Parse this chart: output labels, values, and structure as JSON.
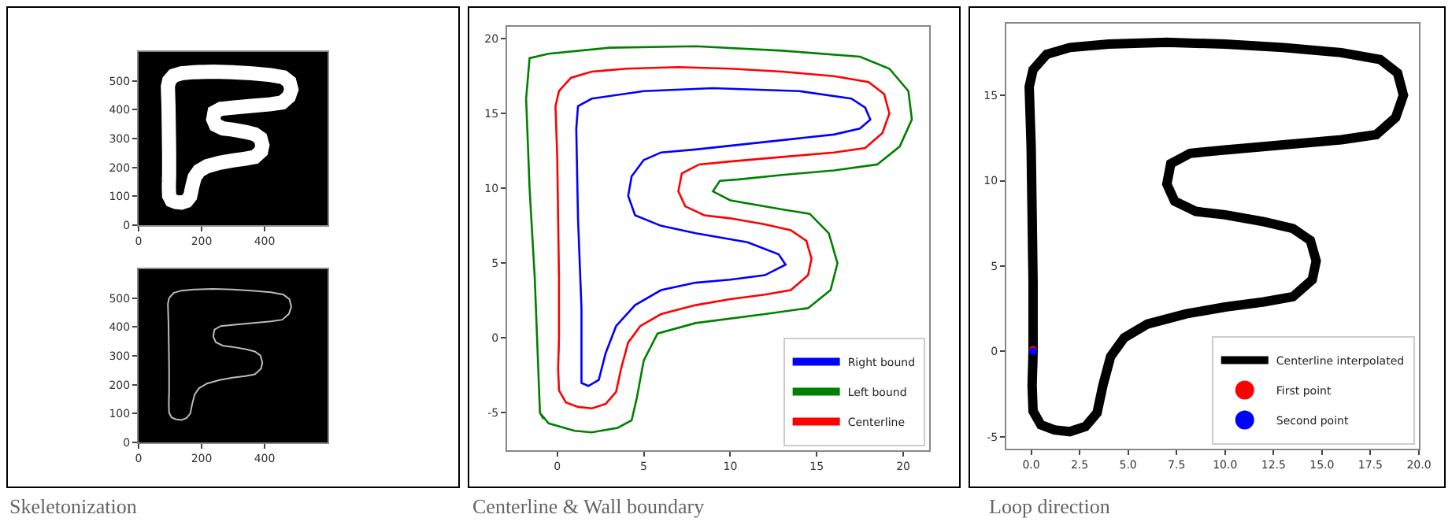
{
  "chart_data": [
    {
      "type": "line",
      "xlim": [
        0,
        600
      ],
      "ylim": [
        0,
        600
      ],
      "xticks": [
        0,
        200,
        400
      ],
      "yticks": [
        0,
        100,
        200,
        300,
        400,
        500
      ],
      "grid": false,
      "series": [
        {
          "color": "#ffffff",
          "x": [
            97,
            96,
            97,
            105,
            119,
            136,
            152,
            164,
            170,
            178,
            192,
            217,
            257,
            298,
            339,
            369,
            389,
            393,
            387,
            369,
            339,
            298,
            268,
            245,
            237,
            241,
            261,
            298,
            359,
            420,
            456,
            477,
            485,
            479,
            460,
            420,
            359,
            298,
            237,
            176,
            136,
            111,
            97,
            93,
            95,
            96,
            97,
            97,
            96
          ],
          "values": [
            172,
            132,
            102,
            86,
            80,
            78,
            84,
            100,
            132,
            166,
            188,
            204,
            216,
            224,
            230,
            236,
            256,
            277,
            301,
            315,
            323,
            331,
            335,
            347,
            367,
            391,
            403,
            407,
            413,
            419,
            425,
            445,
            470,
            496,
            512,
            520,
            526,
            530,
            532,
            530,
            526,
            518,
            500,
            480,
            411,
            331,
            252,
            172,
            152
          ]
        }
      ]
    },
    {
      "type": "line",
      "xlim": [
        0,
        600
      ],
      "ylim": [
        0,
        600
      ],
      "xticks": [
        0,
        200,
        400
      ],
      "yticks": [
        0,
        100,
        200,
        300,
        400,
        500
      ],
      "grid": false,
      "annotations": [
        "Skeletonization"
      ],
      "series": [
        {
          "color": "#bbbbbb",
          "x": [
            97,
            96,
            97,
            105,
            119,
            136,
            152,
            164,
            170,
            178,
            192,
            217,
            257,
            298,
            339,
            369,
            389,
            393,
            387,
            369,
            339,
            298,
            268,
            245,
            237,
            241,
            261,
            298,
            359,
            420,
            456,
            477,
            485,
            479,
            460,
            420,
            359,
            298,
            237,
            176,
            136,
            111,
            97,
            93,
            95,
            96,
            97,
            97,
            96
          ],
          "values": [
            172,
            132,
            102,
            86,
            80,
            78,
            84,
            100,
            132,
            166,
            188,
            204,
            216,
            224,
            230,
            236,
            256,
            277,
            301,
            315,
            323,
            331,
            335,
            347,
            367,
            391,
            403,
            407,
            413,
            419,
            425,
            445,
            470,
            496,
            512,
            520,
            526,
            530,
            532,
            530,
            526,
            518,
            500,
            480,
            411,
            331,
            252,
            172,
            152
          ]
        }
      ]
    },
    {
      "type": "line",
      "xlim": [
        -2.9,
        21.5
      ],
      "ylim": [
        -7.5,
        20.8
      ],
      "xticks": [
        0,
        5,
        10,
        15,
        20
      ],
      "yticks": [
        -5,
        0,
        5,
        10,
        15,
        20
      ],
      "grid": false,
      "legend": "bottom right",
      "annotations": [
        "Centerline & Wall boundary"
      ],
      "series": [
        {
          "name": "Right bound",
          "color": "#0000ff",
          "x": [
            1.4,
            1.8,
            2.4,
            2.8,
            3.4,
            4.5,
            6,
            8,
            10,
            12,
            13.2,
            12.8,
            11,
            8,
            6,
            4.5,
            4.1,
            4.3,
            5,
            6,
            8,
            12,
            16,
            17.5,
            18.1,
            17.8,
            17,
            14,
            9,
            5,
            2,
            1.2,
            1.1,
            1.2,
            1.4,
            1.4,
            1.6
          ],
          "values": [
            -3,
            -3.2,
            -2.8,
            -1,
            0.8,
            2.2,
            3.2,
            3.7,
            3.9,
            4.2,
            4.9,
            5.6,
            6.4,
            7,
            7.5,
            8.2,
            9.5,
            10.8,
            11.9,
            12.4,
            12.6,
            13.1,
            13.6,
            14,
            14.6,
            15.4,
            16,
            16.5,
            16.7,
            16.5,
            16,
            15.5,
            14,
            8,
            2,
            -3,
            -3.1
          ]
        },
        {
          "name": "Left bound",
          "color": "#008000",
          "x": [
            -1,
            -0.5,
            1,
            2,
            3.5,
            4.3,
            4.6,
            5,
            5.8,
            8,
            12,
            14.5,
            15.8,
            16.2,
            15.7,
            14.6,
            13,
            10,
            9,
            9.4,
            10.5,
            13,
            16,
            18.5,
            19.8,
            20.5,
            20.3,
            19.2,
            17.5,
            13,
            8,
            3,
            -0.5,
            -1.6,
            -1.8,
            -1.6,
            -1.3,
            -1,
            -0.8
          ],
          "values": [
            -5,
            -5.7,
            -6.2,
            -6.3,
            -6,
            -5.5,
            -4,
            -1.5,
            0.3,
            1,
            1.6,
            2,
            3.2,
            5,
            7,
            8.3,
            8.6,
            9.2,
            9.8,
            10.5,
            10.6,
            10.9,
            11.2,
            11.6,
            12.8,
            14.6,
            16.5,
            18,
            18.8,
            19.2,
            19.5,
            19.4,
            19,
            18.7,
            16,
            10,
            4,
            -5,
            -5.4
          ]
        },
        {
          "name": "Centerline",
          "color": "#ff0000",
          "x": [
            0.1,
            0.05,
            0.1,
            0.5,
            1.2,
            2,
            2.8,
            3.4,
            3.7,
            4.1,
            4.8,
            6,
            8,
            10,
            12,
            13.5,
            14.5,
            14.7,
            14.4,
            13.5,
            12,
            10,
            8.5,
            7.4,
            7,
            7.2,
            8.2,
            10,
            13,
            16,
            17.8,
            18.8,
            19.2,
            18.9,
            18,
            16,
            13,
            10,
            7,
            4,
            2,
            0.8,
            0.1,
            -0.1,
            0,
            0.05,
            0.1,
            0.1,
            0.08
          ],
          "values": [
            0,
            -2,
            -3.5,
            -4.3,
            -4.6,
            -4.7,
            -4.4,
            -3.6,
            -2,
            -0.3,
            0.8,
            1.6,
            2.2,
            2.6,
            2.9,
            3.2,
            4.2,
            5.3,
            6.5,
            7.2,
            7.6,
            8,
            8.2,
            8.8,
            9.8,
            11,
            11.6,
            11.8,
            12.1,
            12.4,
            12.7,
            13.7,
            15,
            16.3,
            17.1,
            17.5,
            17.8,
            18,
            18.1,
            18,
            17.8,
            17.4,
            16.5,
            15.5,
            12,
            8,
            4,
            0,
            -1
          ]
        }
      ]
    },
    {
      "type": "scatter",
      "xlim": [
        -1.28,
        20
      ],
      "ylim": [
        -5.7,
        19.2
      ],
      "xticks": [
        {
          "value": 0,
          "label": "0.0"
        },
        2.5,
        {
          "value": 5,
          "label": "5.0"
        },
        7.5,
        {
          "value": 10,
          "label": "10.0"
        },
        12.5,
        {
          "value": 15,
          "label": "15.0"
        },
        17.5,
        {
          "value": 20,
          "label": "20.0"
        }
      ],
      "yticks": [
        -5,
        0,
        5,
        10,
        15
      ],
      "grid": false,
      "legend": "bottom right",
      "marker": "circle",
      "annotations": [
        "Loop direction"
      ],
      "series": [
        {
          "name": "Centerline interpolated",
          "type": "line",
          "marker": "none",
          "color": "#000000",
          "x": [
            0.1,
            0.05,
            0.1,
            0.5,
            1.2,
            2,
            2.8,
            3.4,
            3.7,
            4.1,
            4.8,
            6,
            8,
            10,
            12,
            13.5,
            14.5,
            14.7,
            14.4,
            13.5,
            12,
            10,
            8.5,
            7.4,
            7,
            7.2,
            8.2,
            10,
            13,
            16,
            17.8,
            18.8,
            19.2,
            18.9,
            18,
            16,
            13,
            10,
            7,
            4,
            2,
            0.8,
            0.1,
            -0.1,
            0,
            0.05,
            0.1,
            0.1,
            0.08
          ],
          "values": [
            0,
            -2,
            -3.5,
            -4.3,
            -4.6,
            -4.7,
            -4.4,
            -3.6,
            -2,
            -0.3,
            0.8,
            1.6,
            2.2,
            2.6,
            2.9,
            3.2,
            4.2,
            5.3,
            6.5,
            7.2,
            7.6,
            8,
            8.2,
            8.8,
            9.8,
            11,
            11.6,
            11.8,
            12.1,
            12.4,
            12.7,
            13.7,
            15,
            16.3,
            17.1,
            17.5,
            17.8,
            18,
            18.1,
            18,
            17.8,
            17.4,
            16.5,
            15.5,
            12,
            8,
            4,
            0,
            -1
          ]
        },
        {
          "name": "First point",
          "color": "#ff0000",
          "x": [
            0.1
          ],
          "values": [
            0.1
          ]
        },
        {
          "name": "Second point",
          "color": "#0000ff",
          "x": [
            0.1
          ],
          "values": [
            0
          ]
        }
      ]
    }
  ]
}
